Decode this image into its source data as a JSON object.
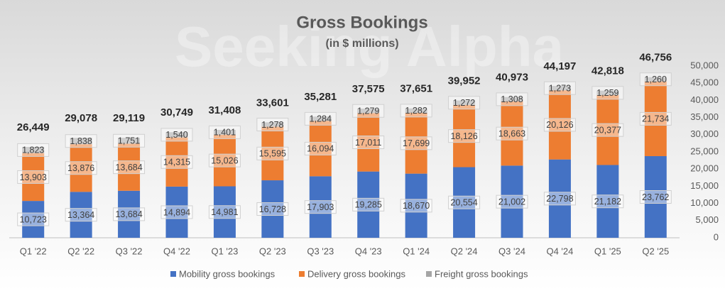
{
  "chart_data": {
    "type": "stacked_bar",
    "title": "Gross Bookings",
    "subtitle": "(in $ millions)",
    "watermark": "Seeking Alpha",
    "categories": [
      "Q1 '22",
      "Q2 '22",
      "Q3 '22",
      "Q4 '22",
      "Q1 '23",
      "Q2 '23",
      "Q3 '23",
      "Q4 '23",
      "Q1 '24",
      "Q2 '24",
      "Q3 '24",
      "Q4 '24",
      "Q1 '25",
      "Q2 '25"
    ],
    "series": [
      {
        "name": "Mobility gross bookings",
        "color": "#4472c4",
        "values": [
          10723,
          13364,
          13684,
          14894,
          14981,
          16728,
          17903,
          19285,
          18670,
          20554,
          21002,
          22798,
          21182,
          23762
        ],
        "value_labels": [
          "10,723",
          "13,364",
          "13,684",
          "14,894",
          "14,981",
          "16,728",
          "17,903",
          "19,285",
          "18,670",
          "20,554",
          "21,002",
          "22,798",
          "21,182",
          "23,762"
        ]
      },
      {
        "name": "Delivery gross bookings",
        "color": "#ed7d31",
        "values": [
          13903,
          13876,
          13684,
          14315,
          15026,
          15595,
          16094,
          17011,
          17699,
          18126,
          18663,
          20126,
          20377,
          21734
        ],
        "value_labels": [
          "13,903",
          "13,876",
          "13,684",
          "14,315",
          "15,026",
          "15,595",
          "16,094",
          "17,011",
          "17,699",
          "18,126",
          "18,663",
          "20,126",
          "20,377",
          "21,734"
        ]
      },
      {
        "name": "Freight gross bookings",
        "color": "#a5a5a5",
        "values": [
          1823,
          1838,
          1751,
          1540,
          1401,
          1278,
          1284,
          1279,
          1282,
          1272,
          1308,
          1273,
          1259,
          1260
        ],
        "value_labels": [
          "1,823",
          "1,838",
          "1,751",
          "1,540",
          "1,401",
          "1,278",
          "1,284",
          "1,279",
          "1,282",
          "1,272",
          "1,308",
          "1,273",
          "1,259",
          "1,260"
        ]
      }
    ],
    "totals": {
      "values": [
        26449,
        29078,
        29119,
        30749,
        31408,
        33601,
        35281,
        37575,
        37651,
        39952,
        40973,
        44197,
        42818,
        46756
      ],
      "value_labels": [
        "26,449",
        "29,078",
        "29,119",
        "30,749",
        "31,408",
        "33,601",
        "35,281",
        "37,575",
        "37,651",
        "39,952",
        "40,973",
        "44,197",
        "42,818",
        "46,756"
      ]
    },
    "ylim": [
      0,
      50000
    ],
    "yticks": [
      0,
      {
        "value": 5000,
        "label": "5,000"
      },
      {
        "value": 10000,
        "label": "10,000"
      },
      {
        "value": 15000,
        "label": "15,000"
      },
      {
        "value": 20000,
        "label": "20,000"
      },
      {
        "value": 25000,
        "label": "25,000"
      },
      {
        "value": 30000,
        "label": "30,000"
      },
      {
        "value": 35000,
        "label": "35,000"
      },
      {
        "value": 40000,
        "label": "40,000"
      },
      {
        "value": 45000,
        "label": "45,000"
      },
      {
        "value": 50000,
        "label": "50,000"
      }
    ],
    "y_axis_side": "right",
    "grid": false,
    "legend": "bottom"
  }
}
